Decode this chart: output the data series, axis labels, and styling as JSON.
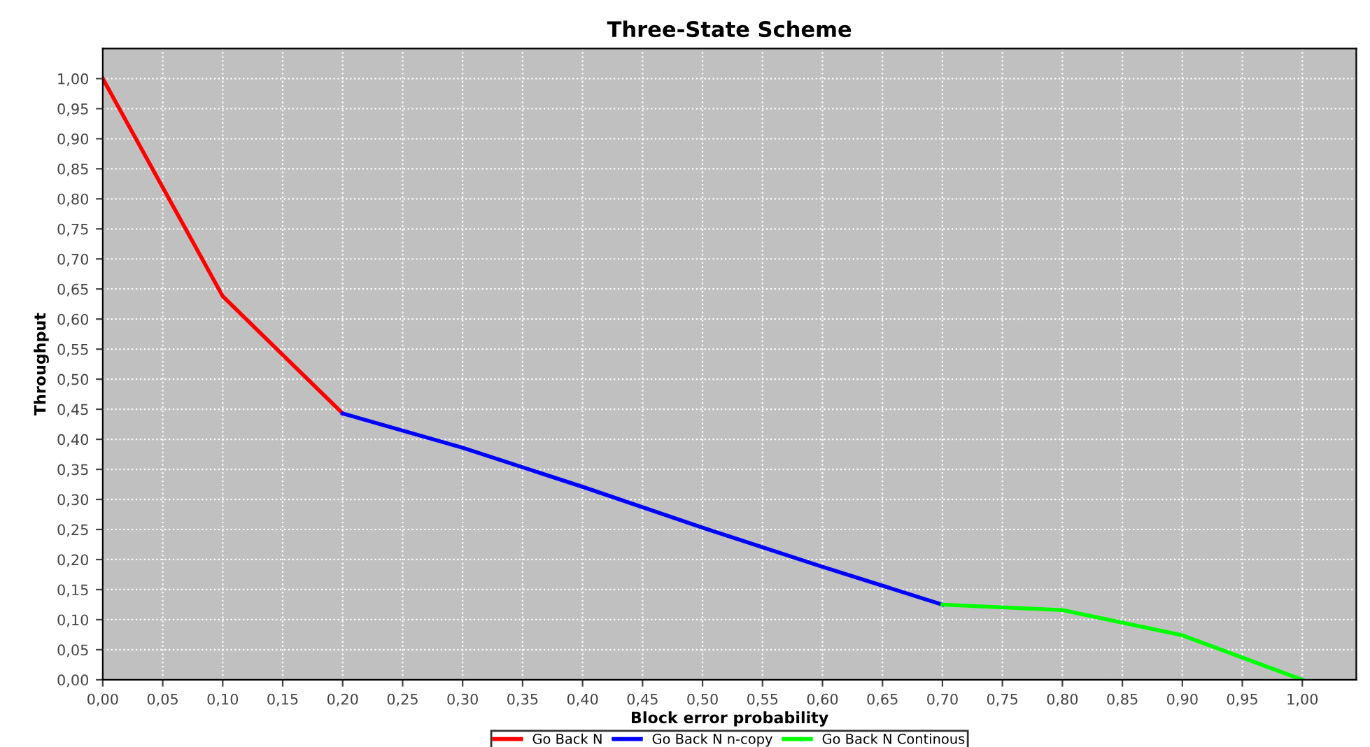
{
  "chart_data": {
    "type": "line",
    "title": "Three-State Scheme",
    "xlabel": "Block error probability",
    "ylabel": "Throughput",
    "series": [
      {
        "name": "Go Back N",
        "color": "#ff0000",
        "x": [
          0.0,
          0.1,
          0.2
        ],
        "values": [
          1.0,
          0.638,
          0.443
        ]
      },
      {
        "name": "Go Back N n-copy",
        "color": "#0000ff",
        "x": [
          0.2,
          0.3,
          0.4,
          0.5,
          0.6,
          0.7
        ],
        "values": [
          0.443,
          0.386,
          0.321,
          0.253,
          0.188,
          0.125
        ]
      },
      {
        "name": "Go Back N Continous",
        "color": "#00ff00",
        "x": [
          0.7,
          0.8,
          0.9,
          1.0
        ],
        "values": [
          0.125,
          0.116,
          0.074,
          0.0
        ]
      }
    ],
    "xlim": [
      0,
      1.045
    ],
    "ylim": [
      0,
      1.05
    ],
    "xticks": [
      {
        "value": 0,
        "label": "0,00"
      },
      {
        "value": 0.05,
        "label": "0,05"
      },
      {
        "value": 0.1,
        "label": "0,10"
      },
      {
        "value": 0.15,
        "label": "0,15"
      },
      {
        "value": 0.2,
        "label": "0,20"
      },
      {
        "value": 0.25,
        "label": "0,25"
      },
      {
        "value": 0.3,
        "label": "0,30"
      },
      {
        "value": 0.35,
        "label": "0,35"
      },
      {
        "value": 0.4,
        "label": "0,40"
      },
      {
        "value": 0.45,
        "label": "0,45"
      },
      {
        "value": 0.5,
        "label": "0,50"
      },
      {
        "value": 0.55,
        "label": "0,55"
      },
      {
        "value": 0.6,
        "label": "0,60"
      },
      {
        "value": 0.65,
        "label": "0,65"
      },
      {
        "value": 0.7,
        "label": "0,70"
      },
      {
        "value": 0.75,
        "label": "0,75"
      },
      {
        "value": 0.8,
        "label": "0,80"
      },
      {
        "value": 0.85,
        "label": "0,85"
      },
      {
        "value": 0.9,
        "label": "0,90"
      },
      {
        "value": 0.95,
        "label": "0,95"
      },
      {
        "value": 1.0,
        "label": "1,00"
      }
    ],
    "yticks": [
      {
        "value": 0,
        "label": "0,00"
      },
      {
        "value": 0.05,
        "label": "0,05"
      },
      {
        "value": 0.1,
        "label": "0,10"
      },
      {
        "value": 0.15,
        "label": "0,15"
      },
      {
        "value": 0.2,
        "label": "0,20"
      },
      {
        "value": 0.25,
        "label": "0,25"
      },
      {
        "value": 0.3,
        "label": "0,30"
      },
      {
        "value": 0.35,
        "label": "0,35"
      },
      {
        "value": 0.4,
        "label": "0,40"
      },
      {
        "value": 0.45,
        "label": "0,45"
      },
      {
        "value": 0.5,
        "label": "0,50"
      },
      {
        "value": 0.55,
        "label": "0,55"
      },
      {
        "value": 0.6,
        "label": "0,60"
      },
      {
        "value": 0.65,
        "label": "0,65"
      },
      {
        "value": 0.7,
        "label": "0,70"
      },
      {
        "value": 0.75,
        "label": "0,75"
      },
      {
        "value": 0.8,
        "label": "0,80"
      },
      {
        "value": 0.85,
        "label": "0,85"
      },
      {
        "value": 0.9,
        "label": "0,90"
      },
      {
        "value": 0.95,
        "label": "0,95"
      },
      {
        "value": 1.0,
        "label": "1,00"
      }
    ],
    "grid": true,
    "legend": "bottom",
    "marker": "none",
    "line_style": "solid"
  }
}
